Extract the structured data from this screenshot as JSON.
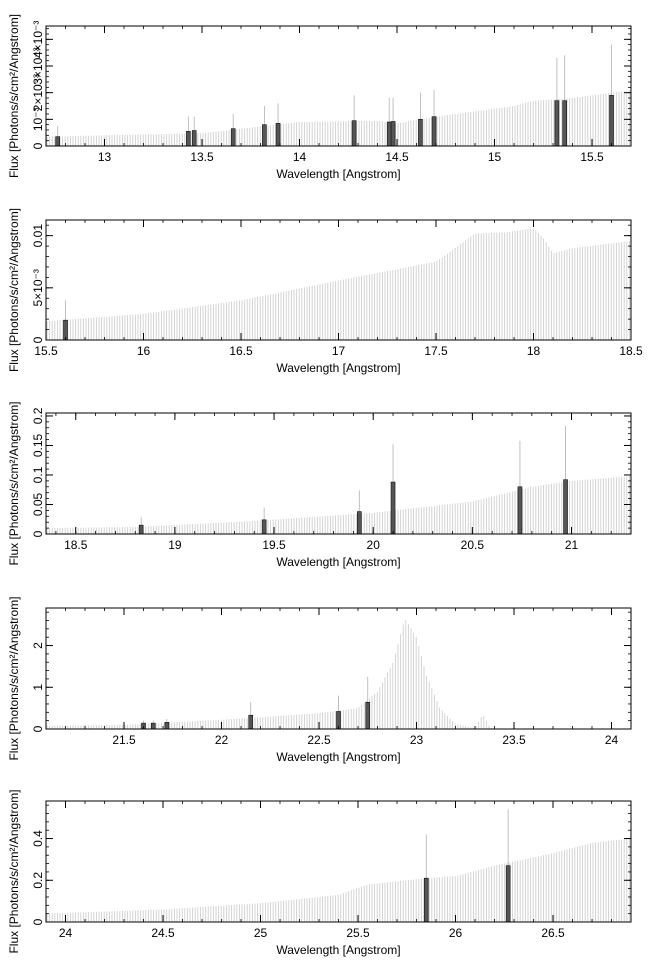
{
  "chart_data": [
    {
      "type": "bar",
      "xlabel": "Wavelength [Angstrom]",
      "ylabel": "Flux [Photons/s/cm²/Angstrom]",
      "xlim": [
        12.7,
        15.7
      ],
      "ylim": [
        0,
        0.0045
      ],
      "xticks": [
        {
          "v": 13,
          "t": "13"
        },
        {
          "v": 13.5,
          "t": "13.5"
        },
        {
          "v": 14,
          "t": "14"
        },
        {
          "v": 14.5,
          "t": "14.5"
        },
        {
          "v": 15,
          "t": "15"
        },
        {
          "v": 15.5,
          "t": "15.5"
        }
      ],
      "yticks": [
        {
          "v": 0,
          "t": "0"
        },
        {
          "v": 0.001,
          "t": "10⁻³"
        },
        {
          "v": 0.002,
          "t": "2×10⁻³"
        },
        {
          "v": 0.003,
          "t": "3×10⁻³"
        },
        {
          "v": 0.004,
          "t": "4×10⁻³"
        }
      ],
      "continuum": [
        [
          12.7,
          0.00035
        ],
        [
          13.0,
          0.0004
        ],
        [
          13.5,
          0.00048
        ],
        [
          14.0,
          0.0009
        ],
        [
          14.4,
          0.00095
        ],
        [
          14.5,
          0.00085
        ],
        [
          14.7,
          0.0011
        ],
        [
          15.0,
          0.0014
        ],
        [
          15.1,
          0.0015
        ],
        [
          15.2,
          0.0017
        ],
        [
          15.4,
          0.0018
        ],
        [
          15.7,
          0.0021
        ]
      ],
      "lines": [
        {
          "x": 12.76,
          "y": 0.00035,
          "err": 0.00075
        },
        {
          "x": 13.43,
          "y": 0.00055,
          "err": 0.0011
        },
        {
          "x": 13.46,
          "y": 0.00058,
          "err": 0.0011
        },
        {
          "x": 13.66,
          "y": 0.00065,
          "err": 0.0012
        },
        {
          "x": 13.82,
          "y": 0.0008,
          "err": 0.0015
        },
        {
          "x": 13.89,
          "y": 0.00085,
          "err": 0.0016
        },
        {
          "x": 14.28,
          "y": 0.00095,
          "err": 0.0019
        },
        {
          "x": 14.46,
          "y": 0.0009,
          "err": 0.0018
        },
        {
          "x": 14.48,
          "y": 0.00092,
          "err": 0.0018
        },
        {
          "x": 14.62,
          "y": 0.001,
          "err": 0.002
        },
        {
          "x": 14.69,
          "y": 0.0011,
          "err": 0.0021
        },
        {
          "x": 15.32,
          "y": 0.0017,
          "err": 0.0033
        },
        {
          "x": 15.36,
          "y": 0.0017,
          "err": 0.0034
        },
        {
          "x": 15.6,
          "y": 0.0019,
          "err": 0.0038
        }
      ]
    },
    {
      "type": "bar",
      "xlabel": "Wavelength [Angstrom]",
      "ylabel": "Flux [Photons/s/cm²/Angstrom]",
      "xlim": [
        15.5,
        18.5
      ],
      "ylim": [
        0,
        0.0115
      ],
      "xticks": [
        {
          "v": 15.5,
          "t": "15.5"
        },
        {
          "v": 16,
          "t": "16"
        },
        {
          "v": 16.5,
          "t": "16.5"
        },
        {
          "v": 17,
          "t": "17"
        },
        {
          "v": 17.5,
          "t": "17.5"
        },
        {
          "v": 18,
          "t": "18"
        },
        {
          "v": 18.5,
          "t": "18.5"
        }
      ],
      "yticks": [
        {
          "v": 0,
          "t": "0"
        },
        {
          "v": 0.005,
          "t": "5×10⁻³"
        },
        {
          "v": 0.01,
          "t": "0.01"
        }
      ],
      "continuum": [
        [
          15.5,
          0.0018
        ],
        [
          16.0,
          0.0025
        ],
        [
          16.5,
          0.0038
        ],
        [
          17.0,
          0.0057
        ],
        [
          17.5,
          0.0075
        ],
        [
          17.7,
          0.0102
        ],
        [
          17.85,
          0.0103
        ],
        [
          18.0,
          0.0107
        ],
        [
          18.05,
          0.0098
        ],
        [
          18.1,
          0.0083
        ],
        [
          18.2,
          0.0088
        ],
        [
          18.5,
          0.0095
        ]
      ],
      "lines": [
        {
          "x": 15.6,
          "y": 0.0019,
          "err": 0.0038
        }
      ]
    },
    {
      "type": "bar",
      "xlabel": "Wavelength [Angstrom]",
      "ylabel": "Flux [Photons/s/cm²/Angstrom]",
      "xlim": [
        18.35,
        21.3
      ],
      "ylim": [
        0,
        0.205
      ],
      "xticks": [
        {
          "v": 18.5,
          "t": "18.5"
        },
        {
          "v": 19,
          "t": "19"
        },
        {
          "v": 19.5,
          "t": "19.5"
        },
        {
          "v": 20,
          "t": "20"
        },
        {
          "v": 20.5,
          "t": "20.5"
        },
        {
          "v": 21,
          "t": "21"
        }
      ],
      "yticks": [
        {
          "v": 0,
          "t": "0"
        },
        {
          "v": 0.05,
          "t": "0.05"
        },
        {
          "v": 0.1,
          "t": "0.1"
        },
        {
          "v": 0.15,
          "t": "0.15"
        },
        {
          "v": 0.2,
          "t": "0.2"
        }
      ],
      "continuum": [
        [
          18.35,
          0.01
        ],
        [
          18.8,
          0.012
        ],
        [
          19.4,
          0.022
        ],
        [
          20.0,
          0.036
        ],
        [
          20.5,
          0.055
        ],
        [
          20.8,
          0.08
        ],
        [
          21.0,
          0.09
        ],
        [
          21.3,
          0.098
        ]
      ],
      "lines": [
        {
          "x": 18.83,
          "y": 0.015,
          "err": 0.028
        },
        {
          "x": 19.45,
          "y": 0.024,
          "err": 0.045
        },
        {
          "x": 19.93,
          "y": 0.038,
          "err": 0.074
        },
        {
          "x": 20.1,
          "y": 0.088,
          "err": 0.152
        },
        {
          "x": 20.74,
          "y": 0.08,
          "err": 0.158
        },
        {
          "x": 20.97,
          "y": 0.092,
          "err": 0.183
        }
      ]
    },
    {
      "type": "bar",
      "xlabel": "Wavelength [Angstrom]",
      "ylabel": "Flux [Photons/s/cm²/Angstrom]",
      "xlim": [
        21.1,
        24.1
      ],
      "ylim": [
        0,
        2.9
      ],
      "xticks": [
        {
          "v": 21.5,
          "t": "21.5"
        },
        {
          "v": 22,
          "t": "22"
        },
        {
          "v": 22.5,
          "t": "22.5"
        },
        {
          "v": 23,
          "t": "23"
        },
        {
          "v": 23.5,
          "t": "23.5"
        },
        {
          "v": 24,
          "t": "24"
        }
      ],
      "yticks": [
        {
          "v": 0,
          "t": "0"
        },
        {
          "v": 1,
          "t": "1"
        },
        {
          "v": 2,
          "t": "2"
        }
      ],
      "continuum": [
        [
          21.1,
          0.08
        ],
        [
          21.5,
          0.1
        ],
        [
          22.0,
          0.22
        ],
        [
          22.5,
          0.38
        ],
        [
          22.7,
          0.5
        ],
        [
          22.8,
          0.9
        ],
        [
          22.88,
          1.6
        ],
        [
          22.94,
          2.65
        ],
        [
          23.0,
          2.2
        ],
        [
          23.05,
          1.3
        ],
        [
          23.12,
          0.5
        ],
        [
          23.2,
          0.12
        ],
        [
          23.3,
          0.02
        ],
        [
          23.34,
          0.35
        ],
        [
          23.38,
          0.02
        ],
        [
          23.5,
          0.0
        ],
        [
          24.1,
          0.0
        ]
      ],
      "lines": [
        {
          "x": 21.6,
          "y": 0.14,
          "err": 0.2
        },
        {
          "x": 21.65,
          "y": 0.14,
          "err": 0.2
        },
        {
          "x": 21.72,
          "y": 0.16,
          "err": 0.24
        },
        {
          "x": 22.15,
          "y": 0.33,
          "err": 0.65
        },
        {
          "x": 22.6,
          "y": 0.42,
          "err": 0.8
        },
        {
          "x": 22.75,
          "y": 0.64,
          "err": 1.25
        }
      ]
    },
    {
      "type": "bar",
      "xlabel": "Wavelength [Angstrom]",
      "ylabel": "Flux [Photons/s/cm²/Angstrom]",
      "xlim": [
        23.9,
        26.9
      ],
      "ylim": [
        0,
        0.58
      ],
      "xticks": [
        {
          "v": 24,
          "t": "24"
        },
        {
          "v": 24.5,
          "t": "24.5"
        },
        {
          "v": 25,
          "t": "25"
        },
        {
          "v": 25.5,
          "t": "25.5"
        },
        {
          "v": 26,
          "t": "26"
        },
        {
          "v": 26.5,
          "t": "26.5"
        }
      ],
      "yticks": [
        {
          "v": 0,
          "t": "0"
        },
        {
          "v": 0.2,
          "t": "0.2"
        },
        {
          "v": 0.4,
          "t": "0.4"
        }
      ],
      "continuum": [
        [
          23.9,
          0.04
        ],
        [
          24.5,
          0.06
        ],
        [
          25.0,
          0.09
        ],
        [
          25.4,
          0.13
        ],
        [
          25.55,
          0.18
        ],
        [
          25.85,
          0.21
        ],
        [
          26.0,
          0.22
        ],
        [
          26.2,
          0.27
        ],
        [
          26.5,
          0.33
        ],
        [
          26.7,
          0.38
        ],
        [
          26.9,
          0.4
        ]
      ],
      "lines": [
        {
          "x": 25.85,
          "y": 0.21,
          "err": 0.42
        },
        {
          "x": 26.27,
          "y": 0.27,
          "err": 0.54
        }
      ]
    }
  ]
}
